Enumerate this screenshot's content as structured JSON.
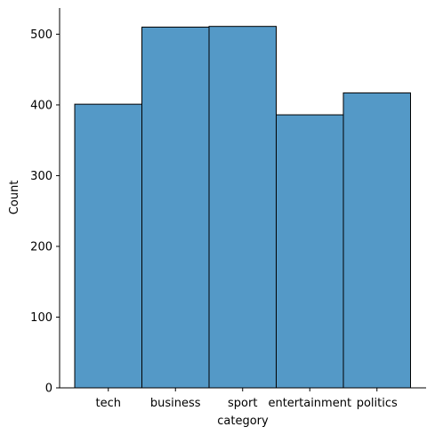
{
  "chart_data": {
    "type": "bar",
    "categories": [
      "tech",
      "business",
      "sport",
      "entertainment",
      "politics"
    ],
    "values": [
      401,
      510,
      511,
      386,
      417
    ],
    "title": "",
    "xlabel": "category",
    "ylabel": "Count",
    "ylim": [
      0,
      537
    ],
    "yticks": [
      0,
      100,
      200,
      300,
      400,
      500
    ],
    "bar_color": "#5499c7",
    "edge_color": "#000000",
    "grid": false,
    "legend": "none"
  }
}
